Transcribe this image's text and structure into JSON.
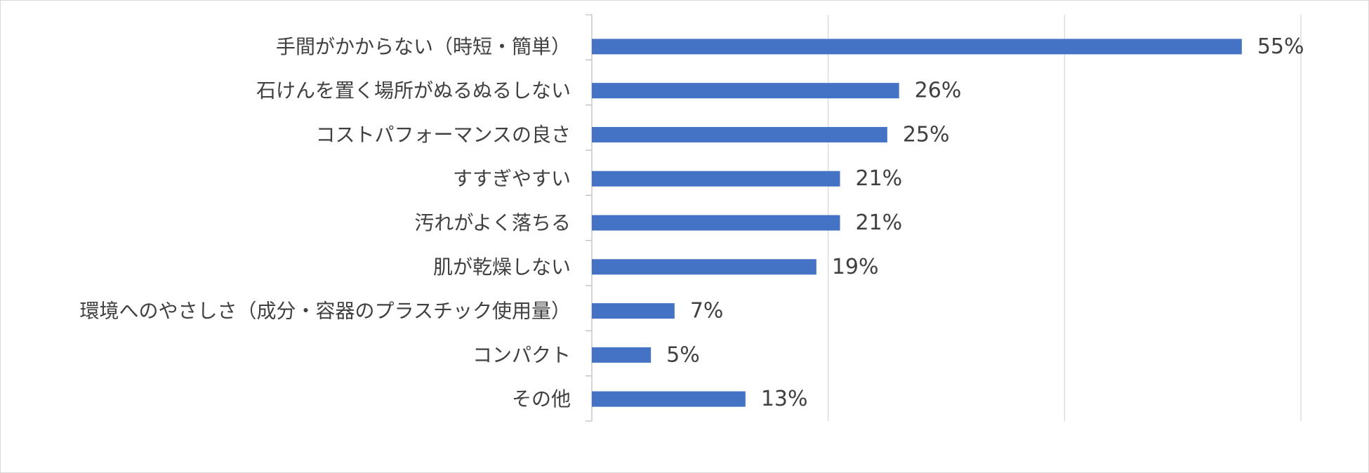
{
  "chart_data": {
    "type": "bar",
    "orientation": "horizontal",
    "categories": [
      "手間がかからない（時短・簡単）",
      "石けんを置く場所がぬるぬるしない",
      "コストパフォーマンスの良さ",
      "すすぎやすい",
      "汚れがよく落ちる",
      "肌が乾燥しない",
      "環境へのやさしさ（成分・容器のプラスチック使用量）",
      "コンパクト",
      "その他"
    ],
    "values": [
      55,
      26,
      25,
      21,
      21,
      19,
      7,
      5,
      13
    ],
    "value_labels": [
      "55%",
      "26%",
      "25%",
      "21%",
      "21%",
      "19%",
      "7%",
      "5%",
      "13%"
    ],
    "xlim": [
      0,
      60
    ],
    "grid": true,
    "legend": "none",
    "bar_color": "#4472c4",
    "grid_color": "#d9d9d9",
    "axis_color": "#bfbfbf"
  }
}
